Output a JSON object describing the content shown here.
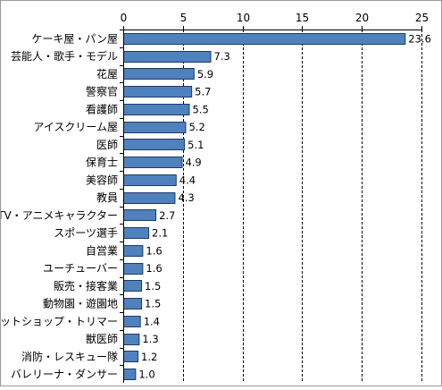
{
  "chart_data": {
    "type": "bar",
    "orientation": "horizontal",
    "title": "",
    "xlabel": "",
    "ylabel": "",
    "xlim": [
      0,
      25
    ],
    "x_ticks": [
      "0",
      "5",
      "10",
      "15",
      "20",
      "25"
    ],
    "x_tick_values": [
      0,
      5,
      10,
      15,
      20,
      25
    ],
    "x_axis_position": "top",
    "grid": "vertical dashed",
    "legend": "none",
    "bar_color": "#4f81bd",
    "bar_border_color": "#1f3a64",
    "categories": [
      "ケーキ屋・パン屋",
      "芸能人・歌手・モデル",
      "花屋",
      "警察官",
      "看護師",
      "アイスクリーム屋",
      "医師",
      "保育士",
      "美容師",
      "教員",
      "TV・アニメキャラクター",
      "スポーツ選手",
      "自営業",
      "ユーチューバー",
      "販売・接客業",
      "動物園・遊園地",
      "ペットショップ・トリマー",
      "獣医師",
      "消防・レスキュー隊",
      "バレリーナ・ダンサー"
    ],
    "values": [
      23.6,
      7.3,
      5.9,
      5.7,
      5.5,
      5.2,
      5.1,
      4.9,
      4.4,
      4.3,
      2.7,
      2.1,
      1.6,
      1.6,
      1.5,
      1.5,
      1.4,
      1.3,
      1.2,
      1.0
    ],
    "value_labels": [
      "23.6",
      "7.3",
      "5.9",
      "5.7",
      "5.5",
      "5.2",
      "5.1",
      "4.9",
      "4.4",
      "4.3",
      "2.7",
      "2.1",
      "1.6",
      "1.6",
      "1.5",
      "1.5",
      "1.4",
      "1.3",
      "1.2",
      "1.0"
    ]
  }
}
